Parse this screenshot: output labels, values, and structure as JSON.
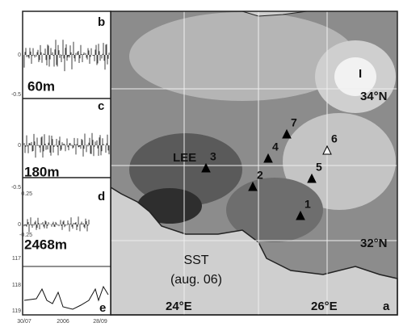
{
  "panels": [
    {
      "letter": "b",
      "depth": "60m",
      "ticks": [
        "0",
        "-0.5"
      ]
    },
    {
      "letter": "c",
      "depth": "180m",
      "ticks": [
        "0",
        "-0.5"
      ]
    },
    {
      "letter": "d",
      "depth": "2468m",
      "ticks": [
        "0.25",
        "0",
        "-0.25"
      ]
    },
    {
      "letter": "e",
      "ticks": [
        "117",
        "118",
        "119"
      ]
    }
  ],
  "time_axis": [
    "30/07",
    "2006",
    "28/09"
  ],
  "map": {
    "letter": "a",
    "stations": [
      "1",
      "2",
      "3",
      "4",
      "5",
      "6",
      "7"
    ],
    "regions": [
      "LEE",
      "I"
    ],
    "lat": [
      "34°N",
      "32°N"
    ],
    "lon": [
      "24°E",
      "26°E"
    ],
    "sst": "SST",
    "date": "(aug. 06)"
  }
}
